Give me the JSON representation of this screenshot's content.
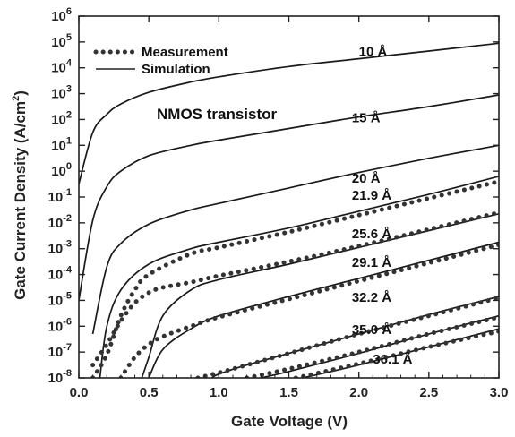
{
  "chart_data": {
    "type": "line",
    "xlabel": "Gate Voltage (V)",
    "ylabel": "Gate Current Density (A/cm",
    "ylabel_sup": "2",
    "ylabel_end": ")",
    "xlim": [
      0.0,
      3.0
    ],
    "ylim_log10": [
      -8,
      6
    ],
    "y_scale": "log",
    "x_ticks": [
      "0.0",
      "0.5",
      "1.0",
      "1.5",
      "2.0",
      "2.5",
      "3.0"
    ],
    "y_ticks": [
      {
        "base": "10",
        "exp": "6"
      },
      {
        "base": "10",
        "exp": "5"
      },
      {
        "base": "10",
        "exp": "4"
      },
      {
        "base": "10",
        "exp": "3"
      },
      {
        "base": "10",
        "exp": "2"
      },
      {
        "base": "10",
        "exp": "1"
      },
      {
        "base": "10",
        "exp": "0"
      },
      {
        "base": "10",
        "exp": "-1"
      },
      {
        "base": "10",
        "exp": "-2"
      },
      {
        "base": "10",
        "exp": "-3"
      },
      {
        "base": "10",
        "exp": "-4"
      },
      {
        "base": "10",
        "exp": "-5"
      },
      {
        "base": "10",
        "exp": "-6"
      },
      {
        "base": "10",
        "exp": "-7"
      },
      {
        "base": "10",
        "exp": "-8"
      }
    ],
    "annotation": "NMOS transistor",
    "legend": {
      "position": "top-left",
      "entries": [
        {
          "label": "Measurement",
          "style": "dotted"
        },
        {
          "label": "Simulation",
          "style": "solid"
        }
      ]
    },
    "series": [
      {
        "name": "10 Å",
        "kind": "simulation",
        "x": [
          0.0,
          0.1,
          0.2,
          0.3,
          0.5,
          0.8,
          1.0,
          1.5,
          2.0,
          2.5,
          3.0
        ],
        "y_log10": [
          -0.5,
          1.5,
          2.2,
          2.6,
          3.05,
          3.45,
          3.65,
          4.05,
          4.35,
          4.65,
          4.95
        ]
      },
      {
        "name": "15 Å",
        "kind": "simulation",
        "x": [
          0.0,
          0.1,
          0.2,
          0.3,
          0.5,
          0.8,
          1.0,
          1.5,
          2.0,
          2.5,
          3.0
        ],
        "y_log10": [
          -5.0,
          -1.9,
          -0.6,
          0.0,
          0.6,
          1.0,
          1.2,
          1.65,
          2.1,
          2.5,
          2.95
        ]
      },
      {
        "name": "20 Å",
        "kind": "simulation",
        "x": [
          0.1,
          0.2,
          0.3,
          0.5,
          0.8,
          1.0,
          1.5,
          2.0,
          2.5,
          3.0
        ],
        "y_log10": [
          -6.3,
          -3.7,
          -2.8,
          -2.05,
          -1.5,
          -1.25,
          -0.65,
          -0.05,
          0.5,
          1.0
        ]
      },
      {
        "name": "21.9 Å",
        "kind": "simulation",
        "x": [
          0.15,
          0.2,
          0.3,
          0.5,
          0.8,
          1.0,
          1.5,
          2.0,
          2.5,
          3.0
        ],
        "y_log10": [
          -8.0,
          -6.0,
          -4.6,
          -3.6,
          -3.0,
          -2.75,
          -2.2,
          -1.55,
          -0.9,
          -0.2
        ]
      },
      {
        "name": "21.9 Å",
        "kind": "measurement",
        "x": [
          0.1,
          0.2,
          0.3,
          0.4,
          0.5,
          0.8,
          1.0,
          1.5,
          2.0,
          2.5,
          3.0
        ],
        "y_log10": [
          -8.0,
          -7.1,
          -5.6,
          -4.6,
          -4.0,
          -3.2,
          -2.95,
          -2.35,
          -1.7,
          -1.05,
          -0.4
        ]
      },
      {
        "name": "25.6 Å",
        "kind": "simulation",
        "x": [
          0.45,
          0.5,
          0.6,
          0.8,
          1.0,
          1.5,
          2.0,
          2.5,
          3.0
        ],
        "y_log10": [
          -8.0,
          -7.2,
          -5.6,
          -4.6,
          -4.2,
          -3.6,
          -2.95,
          -2.3,
          -1.65
        ]
      },
      {
        "name": "25.6 Å",
        "kind": "measurement",
        "x": [
          0.1,
          0.2,
          0.3,
          0.4,
          0.5,
          0.6,
          0.8,
          1.0,
          1.5,
          2.0,
          2.5,
          3.0
        ],
        "y_log10": [
          -7.5,
          -6.7,
          -5.8,
          -5.1,
          -4.7,
          -4.5,
          -4.3,
          -4.05,
          -3.5,
          -2.9,
          -2.25,
          -1.6
        ]
      },
      {
        "name": "29.1 Å",
        "kind": "simulation",
        "x": [
          0.5,
          0.6,
          0.8,
          1.0,
          1.5,
          2.0,
          2.5,
          3.0
        ],
        "y_log10": [
          -8.0,
          -6.9,
          -6.1,
          -5.6,
          -4.85,
          -4.15,
          -3.45,
          -2.75
        ]
      },
      {
        "name": "29.1 Å",
        "kind": "measurement",
        "x": [
          0.3,
          0.4,
          0.5,
          0.6,
          0.8,
          1.0,
          1.5,
          2.0,
          2.5,
          3.0
        ],
        "y_log10": [
          -8.0,
          -7.2,
          -6.7,
          -6.4,
          -6.0,
          -5.65,
          -4.95,
          -4.25,
          -3.55,
          -2.85
        ]
      },
      {
        "name": "32.2 Å",
        "kind": "simulation",
        "x": [
          0.95,
          1.0,
          1.2,
          1.5,
          2.0,
          2.5,
          3.0
        ],
        "y_log10": [
          -8.0,
          -7.85,
          -7.5,
          -7.05,
          -6.3,
          -5.55,
          -4.85
        ]
      },
      {
        "name": "32.2 Å",
        "kind": "measurement",
        "x": [
          0.85,
          1.0,
          1.2,
          1.5,
          2.0,
          2.5,
          3.0
        ],
        "y_log10": [
          -8.0,
          -7.8,
          -7.5,
          -7.05,
          -6.3,
          -5.6,
          -4.9
        ]
      },
      {
        "name": "35.0 Å",
        "kind": "simulation",
        "x": [
          1.3,
          1.5,
          2.0,
          2.5,
          3.0
        ],
        "y_log10": [
          -8.0,
          -7.75,
          -7.05,
          -6.3,
          -5.6
        ]
      },
      {
        "name": "35.0 Å",
        "kind": "measurement",
        "x": [
          1.2,
          1.5,
          2.0,
          2.5,
          3.0
        ],
        "y_log10": [
          -8.0,
          -7.65,
          -7.0,
          -6.3,
          -5.65
        ]
      },
      {
        "name": "36.1 Å",
        "kind": "simulation",
        "x": [
          1.6,
          2.0,
          2.5,
          3.0
        ],
        "y_log10": [
          -8.0,
          -7.5,
          -6.8,
          -6.1
        ]
      },
      {
        "name": "36.1 Å",
        "kind": "measurement",
        "x": [
          1.55,
          2.0,
          2.5,
          3.0
        ],
        "y_log10": [
          -8.0,
          -7.45,
          -6.8,
          -6.2
        ]
      }
    ],
    "curve_labels": [
      {
        "text": "10 Å",
        "x": 2.0,
        "y_log10": 4.45
      },
      {
        "text": "15 Å",
        "x": 1.95,
        "y_log10": 1.9
      },
      {
        "text": "20 Å",
        "x": 1.95,
        "y_log10": -0.45
      },
      {
        "text": "21.9 Å",
        "x": 1.95,
        "y_log10": -1.1
      },
      {
        "text": "25.6 Å",
        "x": 1.95,
        "y_log10": -2.6
      },
      {
        "text": "29.1 Å",
        "x": 1.95,
        "y_log10": -3.7
      },
      {
        "text": "32.2 Å",
        "x": 1.95,
        "y_log10": -5.05
      },
      {
        "text": "35.0 Å",
        "x": 1.95,
        "y_log10": -6.3
      },
      {
        "text": "36.1 Å",
        "x": 2.1,
        "y_log10": -7.45
      }
    ]
  }
}
